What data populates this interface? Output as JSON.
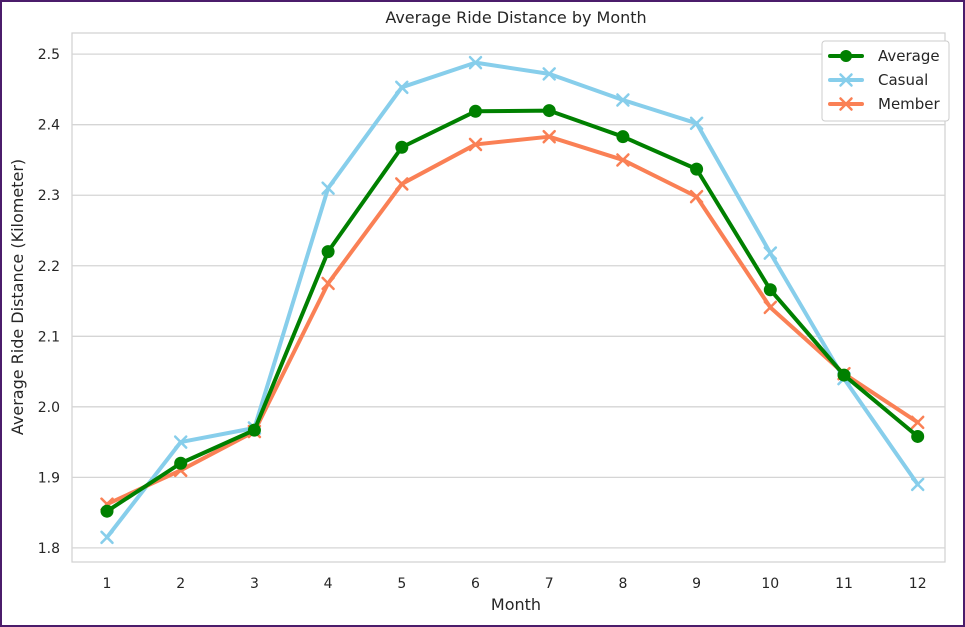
{
  "chart_data": {
    "type": "line",
    "title": "Average Ride Distance by Month",
    "xlabel": "Month",
    "ylabel": "Average Ride Distance (Kilometer)",
    "categories": [
      "1",
      "2",
      "3",
      "4",
      "5",
      "6",
      "7",
      "8",
      "9",
      "10",
      "11",
      "12"
    ],
    "ylim": [
      1.78,
      2.53
    ],
    "yticks": [
      "1.8",
      "1.9",
      "2.0",
      "2.1",
      "2.2",
      "2.3",
      "2.4",
      "2.5"
    ],
    "grid": "horizontal",
    "legend_position": "top-right",
    "series": [
      {
        "name": "Average",
        "color": "#008000",
        "marker": "circle",
        "values": [
          1.852,
          1.92,
          1.967,
          2.22,
          2.368,
          2.419,
          2.42,
          2.383,
          2.337,
          2.166,
          2.045,
          1.958
        ]
      },
      {
        "name": "Casual",
        "color": "#87ceeb",
        "marker": "x",
        "values": [
          1.815,
          1.95,
          1.97,
          2.31,
          2.453,
          2.488,
          2.472,
          2.435,
          2.402,
          2.218,
          2.04,
          1.89
        ]
      },
      {
        "name": "Member",
        "color": "#fa8055",
        "marker": "x",
        "values": [
          1.862,
          1.91,
          1.965,
          2.175,
          2.316,
          2.372,
          2.383,
          2.35,
          2.298,
          2.141,
          2.047,
          1.978
        ]
      }
    ]
  }
}
